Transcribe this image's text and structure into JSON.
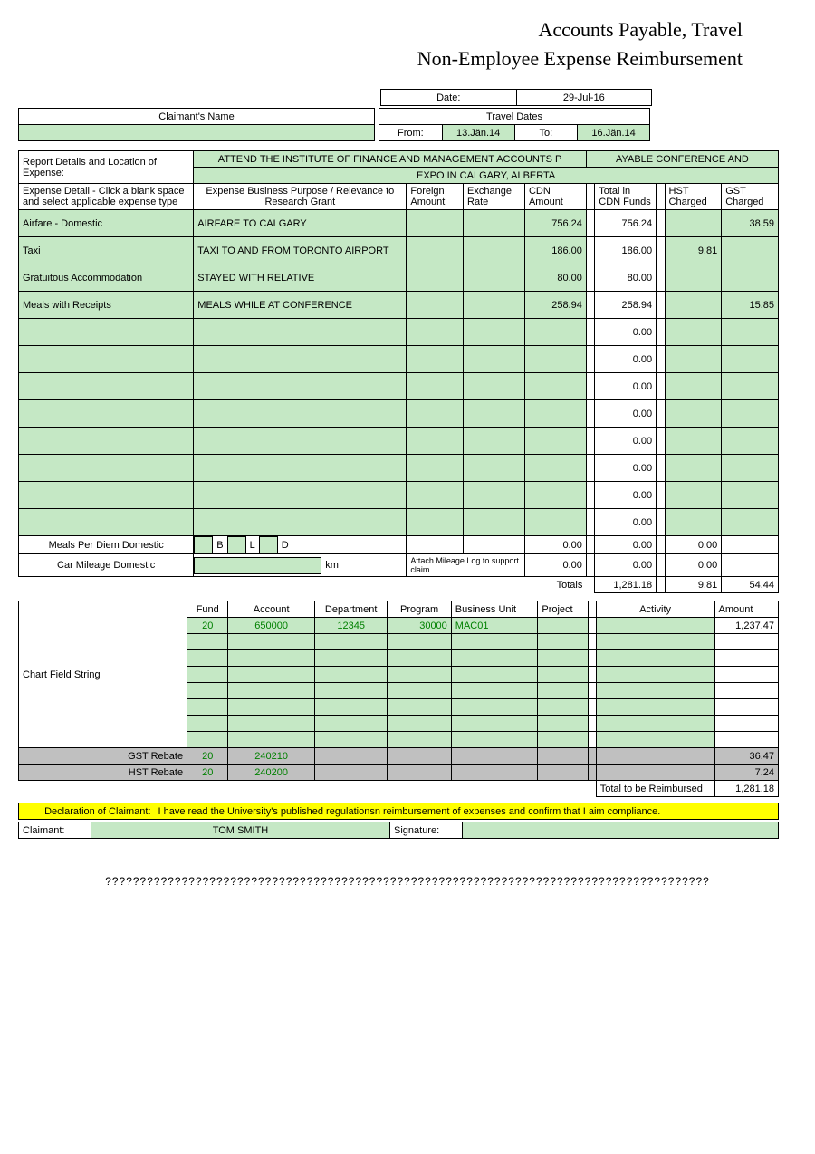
{
  "titles": {
    "main": "Accounts Payable, Travel",
    "sub": "Non-Employee Expense Reimbursement"
  },
  "header": {
    "claimant_label": "Claimant's Name",
    "claimant_value": "",
    "date_label": "Date:",
    "date_value": "29-Jul-16",
    "travel_dates_label": "Travel Dates",
    "from_label": "From:",
    "from_value": "13.Jän.14",
    "to_label": "To:",
    "to_value": "16.Jän.14"
  },
  "report": {
    "details_label": "Report Details and Location of Expense:",
    "details_line1": "ATTEND THE INSTITUTE OF FINANCE AND MANAGEMENT ACCOUNTS P",
    "details_line1b": "AYABLE CONFERENCE AND",
    "details_line2": "EXPO IN CALGARY, ALBERTA"
  },
  "cols": {
    "detail": "Expense Detail - Click a blank space and select applicable expense type",
    "purpose": "Expense Business Purpose / Relevance to Research Grant",
    "foreign": "Foreign Amount",
    "exchange": "Exchange Rate",
    "cdn": "CDN Amount",
    "total_cdn": "Total in CDN Funds",
    "hst": "HST Charged",
    "gst": "GST Charged"
  },
  "rows": [
    {
      "detail": "Airfare - Domestic",
      "purpose": "AIRFARE TO CALGARY",
      "foreign": "",
      "exchange": "",
      "cdn": "756.24",
      "total": "756.24",
      "hst": "",
      "gst": "38.59"
    },
    {
      "detail": "Taxi",
      "purpose": "TAXI TO AND FROM TORONTO AIRPORT",
      "foreign": "",
      "exchange": "",
      "cdn": "186.00",
      "total": "186.00",
      "hst": "9.81",
      "gst": ""
    },
    {
      "detail": "Gratuitous Accommodation",
      "purpose": "STAYED WITH RELATIVE",
      "foreign": "",
      "exchange": "",
      "cdn": "80.00",
      "total": "80.00",
      "hst": "",
      "gst": ""
    },
    {
      "detail": "Meals with Receipts",
      "purpose": "MEALS WHILE AT CONFERENCE",
      "foreign": "",
      "exchange": "",
      "cdn": "258.94",
      "total": "258.94",
      "hst": "",
      "gst": "15.85"
    },
    {
      "detail": "",
      "purpose": "",
      "foreign": "",
      "exchange": "",
      "cdn": "",
      "total": "0.00",
      "hst": "",
      "gst": ""
    },
    {
      "detail": "",
      "purpose": "",
      "foreign": "",
      "exchange": "",
      "cdn": "",
      "total": "0.00",
      "hst": "",
      "gst": ""
    },
    {
      "detail": "",
      "purpose": "",
      "foreign": "",
      "exchange": "",
      "cdn": "",
      "total": "0.00",
      "hst": "",
      "gst": ""
    },
    {
      "detail": "",
      "purpose": "",
      "foreign": "",
      "exchange": "",
      "cdn": "",
      "total": "0.00",
      "hst": "",
      "gst": ""
    },
    {
      "detail": "",
      "purpose": "",
      "foreign": "",
      "exchange": "",
      "cdn": "",
      "total": "0.00",
      "hst": "",
      "gst": ""
    },
    {
      "detail": "",
      "purpose": "",
      "foreign": "",
      "exchange": "",
      "cdn": "",
      "total": "0.00",
      "hst": "",
      "gst": ""
    },
    {
      "detail": "",
      "purpose": "",
      "foreign": "",
      "exchange": "",
      "cdn": "",
      "total": "0.00",
      "hst": "",
      "gst": ""
    },
    {
      "detail": "",
      "purpose": "",
      "foreign": "",
      "exchange": "",
      "cdn": "",
      "total": "0.00",
      "hst": "",
      "gst": ""
    }
  ],
  "perdiem": {
    "label": "Meals Per Diem Domestic",
    "b": "B",
    "l": "L",
    "d": "D",
    "cdn": "0.00",
    "total": "0.00",
    "hst": "0.00"
  },
  "mileage": {
    "label": "Car Mileage Domestic",
    "km": "km",
    "note": "Attach Mileage Log to support claim",
    "cdn": "0.00",
    "total": "0.00",
    "hst": "0.00"
  },
  "totals": {
    "label": "Totals",
    "total": "1,281.18",
    "hst": "9.81",
    "gst": "54.44"
  },
  "chart": {
    "label": "Chart Field String",
    "cols": {
      "fund": "Fund",
      "account": "Account",
      "dept": "Department",
      "program": "Program",
      "bu": "Business Unit",
      "project": "Project",
      "activity": "Activity",
      "amount": "Amount"
    },
    "row1": {
      "fund": "20",
      "account": "650000",
      "dept": "12345",
      "program": "30000",
      "bu": "MAC01",
      "project": "",
      "activity": "",
      "amount": "1,237.47"
    },
    "gst_rebate": {
      "label": "GST Rebate",
      "fund": "20",
      "account": "240210",
      "amount": "36.47"
    },
    "hst_rebate": {
      "label": "HST Rebate",
      "fund": "20",
      "account": "240200",
      "amount": "7.24"
    },
    "total_reimb": {
      "label": "Total to be Reimbursed",
      "amount": "1,281.18"
    }
  },
  "declaration": {
    "label": "Declaration of Claimant:",
    "text": "I have read the University's published regulationsn reimbursement of expenses and confirm that I aim compliance."
  },
  "signature": {
    "claimant_label": "Claimant:",
    "claimant_value": "TOM SMITH",
    "sig_label": "Signature:"
  },
  "footer": "???????????????????????????????????????????????????????????????????????????????????????"
}
